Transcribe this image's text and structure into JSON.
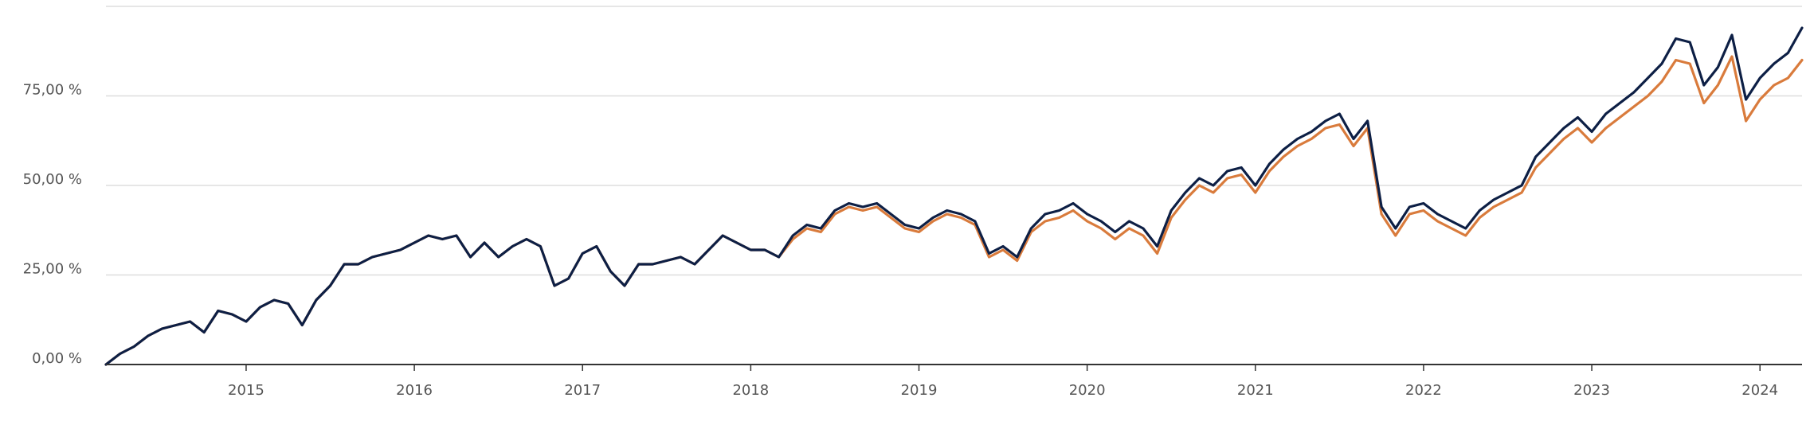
{
  "chart_data": {
    "type": "line",
    "title": "",
    "xlabel": "",
    "ylabel": "",
    "x_range": [
      "2014-03",
      "2024-04"
    ],
    "ylim": [
      0,
      100
    ],
    "yticks": [
      {
        "value": 0,
        "label": "0,00 %"
      },
      {
        "value": 25,
        "label": "25,00 %"
      },
      {
        "value": 50,
        "label": "50,00 %"
      },
      {
        "value": 75,
        "label": "75,00 %"
      }
    ],
    "xticks": [
      {
        "value": "2015-01",
        "label": "2015"
      },
      {
        "value": "2016-01",
        "label": "2016"
      },
      {
        "value": "2017-01",
        "label": "2017"
      },
      {
        "value": "2018-01",
        "label": "2018"
      },
      {
        "value": "2019-01",
        "label": "2019"
      },
      {
        "value": "2020-01",
        "label": "2020"
      },
      {
        "value": "2021-01",
        "label": "2021"
      },
      {
        "value": "2022-01",
        "label": "2022"
      },
      {
        "value": "2023-01",
        "label": "2023"
      },
      {
        "value": "2024-01",
        "label": "2024"
      }
    ],
    "grid": true,
    "legend": "none",
    "series": [
      {
        "color": "#0d1f45",
        "points": [
          [
            "2014-03",
            0
          ],
          [
            "2014-04",
            3
          ],
          [
            "2014-05",
            5
          ],
          [
            "2014-06",
            8
          ],
          [
            "2014-07",
            10
          ],
          [
            "2014-08",
            11
          ],
          [
            "2014-09",
            12
          ],
          [
            "2014-10",
            9
          ],
          [
            "2014-11",
            15
          ],
          [
            "2014-12",
            14
          ],
          [
            "2015-01",
            12
          ],
          [
            "2015-02",
            16
          ],
          [
            "2015-03",
            18
          ],
          [
            "2015-04",
            17
          ],
          [
            "2015-05",
            11
          ],
          [
            "2015-06",
            18
          ],
          [
            "2015-07",
            22
          ],
          [
            "2015-08",
            28
          ],
          [
            "2015-09",
            28
          ],
          [
            "2015-10",
            30
          ],
          [
            "2015-11",
            31
          ],
          [
            "2015-12",
            32
          ],
          [
            "2016-01",
            34
          ],
          [
            "2016-02",
            36
          ],
          [
            "2016-03",
            35
          ],
          [
            "2016-04",
            36
          ],
          [
            "2016-05",
            30
          ],
          [
            "2016-06",
            34
          ],
          [
            "2016-07",
            30
          ],
          [
            "2016-08",
            33
          ],
          [
            "2016-09",
            35
          ],
          [
            "2016-10",
            33
          ],
          [
            "2016-11",
            22
          ],
          [
            "2016-12",
            24
          ],
          [
            "2017-01",
            31
          ],
          [
            "2017-02",
            33
          ],
          [
            "2017-03",
            26
          ],
          [
            "2017-04",
            22
          ],
          [
            "2017-05",
            28
          ],
          [
            "2017-06",
            28
          ],
          [
            "2017-07",
            29
          ],
          [
            "2017-08",
            30
          ],
          [
            "2017-09",
            28
          ],
          [
            "2017-10",
            32
          ],
          [
            "2017-11",
            36
          ],
          [
            "2017-12",
            34
          ],
          [
            "2018-01",
            32
          ],
          [
            "2018-02",
            32
          ],
          [
            "2018-03",
            30
          ],
          [
            "2018-04",
            36
          ],
          [
            "2018-05",
            39
          ],
          [
            "2018-06",
            38
          ],
          [
            "2018-07",
            43
          ],
          [
            "2018-08",
            45
          ],
          [
            "2018-09",
            44
          ],
          [
            "2018-10",
            45
          ],
          [
            "2018-11",
            42
          ],
          [
            "2018-12",
            39
          ],
          [
            "2019-01",
            38
          ],
          [
            "2019-02",
            41
          ],
          [
            "2019-03",
            43
          ],
          [
            "2019-04",
            42
          ],
          [
            "2019-05",
            40
          ],
          [
            "2019-06",
            31
          ],
          [
            "2019-07",
            33
          ],
          [
            "2019-08",
            30
          ],
          [
            "2019-09",
            38
          ],
          [
            "2019-10",
            42
          ],
          [
            "2019-11",
            43
          ],
          [
            "2019-12",
            45
          ],
          [
            "2020-01",
            42
          ],
          [
            "2020-02",
            40
          ],
          [
            "2020-03",
            37
          ],
          [
            "2020-04",
            40
          ],
          [
            "2020-05",
            38
          ],
          [
            "2020-06",
            33
          ],
          [
            "2020-07",
            43
          ],
          [
            "2020-08",
            48
          ],
          [
            "2020-09",
            52
          ],
          [
            "2020-10",
            50
          ],
          [
            "2020-11",
            54
          ],
          [
            "2020-12",
            55
          ],
          [
            "2021-01",
            50
          ],
          [
            "2021-02",
            56
          ],
          [
            "2021-03",
            60
          ],
          [
            "2021-04",
            63
          ],
          [
            "2021-05",
            65
          ],
          [
            "2021-06",
            68
          ],
          [
            "2021-07",
            70
          ],
          [
            "2021-08",
            63
          ],
          [
            "2021-09",
            68
          ],
          [
            "2021-10",
            44
          ],
          [
            "2021-11",
            38
          ],
          [
            "2021-12",
            44
          ],
          [
            "2022-01",
            45
          ],
          [
            "2022-02",
            42
          ],
          [
            "2022-03",
            40
          ],
          [
            "2022-04",
            38
          ],
          [
            "2022-05",
            43
          ],
          [
            "2022-06",
            46
          ],
          [
            "2022-07",
            48
          ],
          [
            "2022-08",
            50
          ],
          [
            "2022-09",
            58
          ],
          [
            "2022-10",
            62
          ],
          [
            "2022-11",
            66
          ],
          [
            "2022-12",
            69
          ],
          [
            "2023-01",
            65
          ],
          [
            "2023-02",
            70
          ],
          [
            "2023-03",
            73
          ],
          [
            "2023-04",
            76
          ],
          [
            "2023-05",
            80
          ],
          [
            "2023-06",
            84
          ],
          [
            "2023-07",
            91
          ],
          [
            "2023-08",
            90
          ],
          [
            "2023-09",
            78
          ],
          [
            "2023-10",
            83
          ],
          [
            "2023-11",
            92
          ],
          [
            "2023-12",
            74
          ],
          [
            "2024-01",
            80
          ],
          [
            "2024-02",
            84
          ],
          [
            "2024-03",
            87
          ],
          [
            "2024-04",
            94
          ]
        ]
      },
      {
        "color": "#d97b3c",
        "points": [
          [
            "2014-03",
            0
          ],
          [
            "2014-04",
            3
          ],
          [
            "2014-05",
            5
          ],
          [
            "2014-06",
            8
          ],
          [
            "2014-07",
            10
          ],
          [
            "2014-08",
            11
          ],
          [
            "2014-09",
            12
          ],
          [
            "2014-10",
            9
          ],
          [
            "2014-11",
            15
          ],
          [
            "2014-12",
            14
          ],
          [
            "2015-01",
            12
          ],
          [
            "2015-02",
            16
          ],
          [
            "2015-03",
            18
          ],
          [
            "2015-04",
            17
          ],
          [
            "2015-05",
            11
          ],
          [
            "2015-06",
            18
          ],
          [
            "2015-07",
            22
          ],
          [
            "2015-08",
            28
          ],
          [
            "2015-09",
            28
          ],
          [
            "2015-10",
            30
          ],
          [
            "2015-11",
            31
          ],
          [
            "2015-12",
            32
          ],
          [
            "2016-01",
            34
          ],
          [
            "2016-02",
            36
          ],
          [
            "2016-03",
            35
          ],
          [
            "2016-04",
            36
          ],
          [
            "2016-05",
            30
          ],
          [
            "2016-06",
            34
          ],
          [
            "2016-07",
            30
          ],
          [
            "2016-08",
            33
          ],
          [
            "2016-09",
            35
          ],
          [
            "2016-10",
            33
          ],
          [
            "2016-11",
            22
          ],
          [
            "2016-12",
            24
          ],
          [
            "2017-01",
            31
          ],
          [
            "2017-02",
            33
          ],
          [
            "2017-03",
            26
          ],
          [
            "2017-04",
            22
          ],
          [
            "2017-05",
            28
          ],
          [
            "2017-06",
            28
          ],
          [
            "2017-07",
            29
          ],
          [
            "2017-08",
            30
          ],
          [
            "2017-09",
            28
          ],
          [
            "2017-10",
            32
          ],
          [
            "2017-11",
            36
          ],
          [
            "2017-12",
            34
          ],
          [
            "2018-01",
            32
          ],
          [
            "2018-02",
            32
          ],
          [
            "2018-03",
            30
          ],
          [
            "2018-04",
            35
          ],
          [
            "2018-05",
            38
          ],
          [
            "2018-06",
            37
          ],
          [
            "2018-07",
            42
          ],
          [
            "2018-08",
            44
          ],
          [
            "2018-09",
            43
          ],
          [
            "2018-10",
            44
          ],
          [
            "2018-11",
            41
          ],
          [
            "2018-12",
            38
          ],
          [
            "2019-01",
            37
          ],
          [
            "2019-02",
            40
          ],
          [
            "2019-03",
            42
          ],
          [
            "2019-04",
            41
          ],
          [
            "2019-05",
            39
          ],
          [
            "2019-06",
            30
          ],
          [
            "2019-07",
            32
          ],
          [
            "2019-08",
            29
          ],
          [
            "2019-09",
            37
          ],
          [
            "2019-10",
            40
          ],
          [
            "2019-11",
            41
          ],
          [
            "2019-12",
            43
          ],
          [
            "2020-01",
            40
          ],
          [
            "2020-02",
            38
          ],
          [
            "2020-03",
            35
          ],
          [
            "2020-04",
            38
          ],
          [
            "2020-05",
            36
          ],
          [
            "2020-06",
            31
          ],
          [
            "2020-07",
            41
          ],
          [
            "2020-08",
            46
          ],
          [
            "2020-09",
            50
          ],
          [
            "2020-10",
            48
          ],
          [
            "2020-11",
            52
          ],
          [
            "2020-12",
            53
          ],
          [
            "2021-01",
            48
          ],
          [
            "2021-02",
            54
          ],
          [
            "2021-03",
            58
          ],
          [
            "2021-04",
            61
          ],
          [
            "2021-05",
            63
          ],
          [
            "2021-06",
            66
          ],
          [
            "2021-07",
            67
          ],
          [
            "2021-08",
            61
          ],
          [
            "2021-09",
            66
          ],
          [
            "2021-10",
            42
          ],
          [
            "2021-11",
            36
          ],
          [
            "2021-12",
            42
          ],
          [
            "2022-01",
            43
          ],
          [
            "2022-02",
            40
          ],
          [
            "2022-03",
            38
          ],
          [
            "2022-04",
            36
          ],
          [
            "2022-05",
            41
          ],
          [
            "2022-06",
            44
          ],
          [
            "2022-07",
            46
          ],
          [
            "2022-08",
            48
          ],
          [
            "2022-09",
            55
          ],
          [
            "2022-10",
            59
          ],
          [
            "2022-11",
            63
          ],
          [
            "2022-12",
            66
          ],
          [
            "2023-01",
            62
          ],
          [
            "2023-02",
            66
          ],
          [
            "2023-03",
            69
          ],
          [
            "2023-04",
            72
          ],
          [
            "2023-05",
            75
          ],
          [
            "2023-06",
            79
          ],
          [
            "2023-07",
            85
          ],
          [
            "2023-08",
            84
          ],
          [
            "2023-09",
            73
          ],
          [
            "2023-10",
            78
          ],
          [
            "2023-11",
            86
          ],
          [
            "2023-12",
            68
          ],
          [
            "2024-01",
            74
          ],
          [
            "2024-02",
            78
          ],
          [
            "2024-03",
            80
          ],
          [
            "2024-04",
            85
          ]
        ]
      }
    ]
  }
}
